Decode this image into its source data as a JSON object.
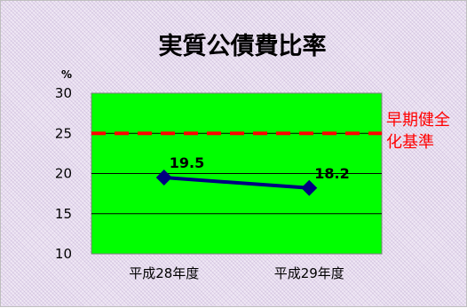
{
  "chart_data": {
    "type": "line",
    "title": "実質公債費比率",
    "ylabel": "%",
    "xlabel": "",
    "categories": [
      "平成28年度",
      "平成29年度"
    ],
    "series": [
      {
        "values": [
          19.5,
          18.2
        ]
      }
    ],
    "ylim": [
      10,
      30
    ],
    "yticks": [
      "30",
      "25",
      "20",
      "15",
      "10"
    ],
    "data_labels": [
      "19.5",
      "18.2"
    ],
    "grid": true,
    "reference_line": {
      "value": 25,
      "label_line1": "早期健全",
      "label_line2": "化基準"
    }
  },
  "colors": {
    "plot_background": "#00ff00",
    "series_line": "#000080",
    "reference_line": "#ff0000",
    "gridline": "#000000"
  }
}
